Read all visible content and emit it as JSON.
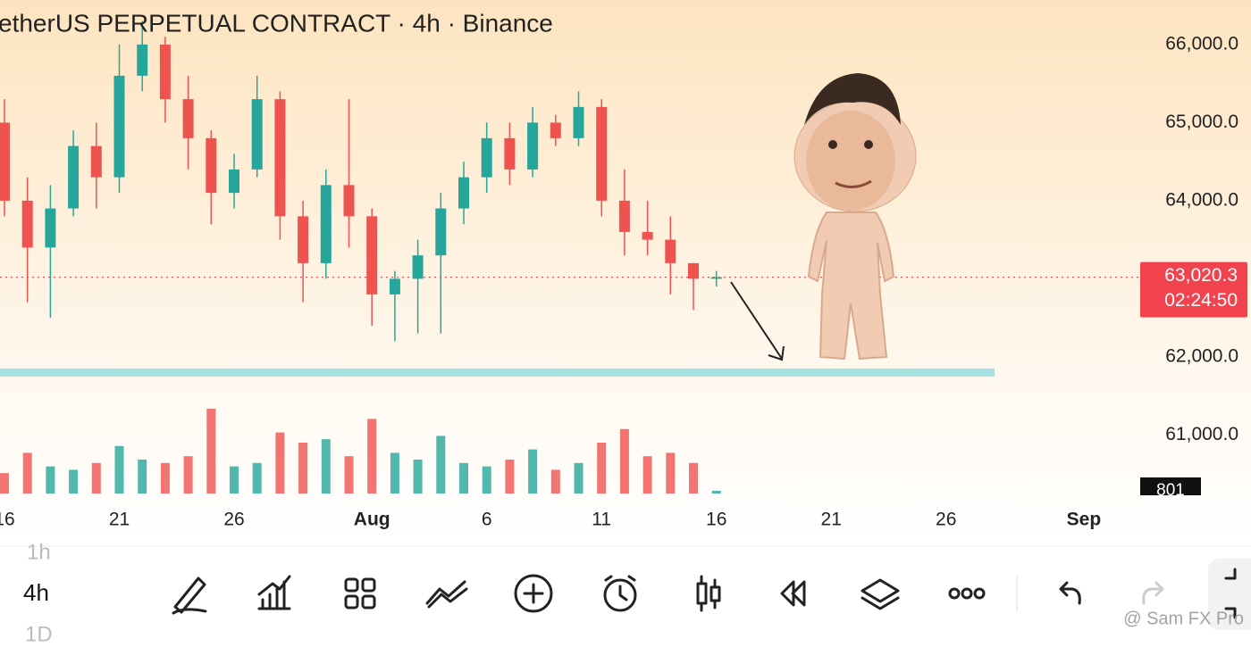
{
  "title": "etherUS PERPETUAL CONTRACT · 4h · Binance",
  "chart_data": {
    "type": "candlestick",
    "categories": [
      "16",
      null,
      null,
      null,
      null,
      "21",
      null,
      null,
      null,
      null,
      "26",
      null,
      null,
      null,
      null,
      null,
      "Aug",
      null,
      null,
      null,
      null,
      "6",
      null,
      null,
      null,
      null,
      "11",
      null,
      null,
      null,
      null,
      "16",
      null,
      null,
      null,
      null,
      "21",
      null,
      null,
      null,
      null,
      "26",
      null,
      null,
      null,
      null,
      null,
      "Sep",
      null,
      null
    ],
    "open": [
      65000,
      64000,
      63400,
      63900,
      64700,
      64300,
      65600,
      66000,
      65300,
      64800,
      64100,
      64400,
      65300,
      63800,
      63200,
      64200,
      63800,
      62800,
      63000,
      63300,
      63900,
      64300,
      64800,
      64400,
      65000,
      64800,
      65200,
      64000,
      63600,
      63500,
      63200,
      63000,
      null,
      null,
      null,
      null,
      null,
      null,
      null,
      null,
      null,
      null,
      null,
      null,
      null,
      null,
      null,
      null,
      null,
      null
    ],
    "high": [
      65300,
      64300,
      64200,
      64900,
      65000,
      66000,
      66300,
      66100,
      65600,
      64900,
      64600,
      65600,
      65400,
      64000,
      64400,
      65300,
      63900,
      63100,
      63500,
      64100,
      64500,
      65000,
      65000,
      65200,
      65100,
      65400,
      65300,
      64400,
      64000,
      63800,
      63200,
      63100,
      null,
      null,
      null,
      null,
      null,
      null,
      null,
      null,
      null,
      null,
      null,
      null,
      null,
      null,
      null,
      null,
      null,
      null
    ],
    "low": [
      63800,
      62700,
      62500,
      63800,
      63900,
      64100,
      65400,
      65000,
      64400,
      63700,
      63900,
      64300,
      63500,
      62700,
      63000,
      63400,
      62400,
      62200,
      62300,
      62300,
      63700,
      64100,
      64200,
      64300,
      64700,
      64700,
      63800,
      63300,
      63300,
      62800,
      62600,
      62900,
      null,
      null,
      null,
      null,
      null,
      null,
      null,
      null,
      null,
      null,
      null,
      null,
      null,
      null,
      null,
      null,
      null,
      null
    ],
    "close": [
      64000,
      63400,
      63900,
      64700,
      64300,
      65600,
      66000,
      65300,
      64800,
      64100,
      64400,
      65300,
      63800,
      63200,
      64200,
      63800,
      62800,
      63000,
      63300,
      63900,
      64300,
      64800,
      64400,
      65000,
      64800,
      65200,
      64000,
      63600,
      63500,
      63200,
      63000,
      63020.3,
      null,
      null,
      null,
      null,
      null,
      null,
      null,
      null,
      null,
      null,
      null,
      null,
      null,
      null,
      null,
      null,
      null,
      null
    ],
    "volume": [
      6000,
      12000,
      8000,
      7000,
      9000,
      14000,
      10000,
      9000,
      11000,
      25000,
      8000,
      9000,
      18000,
      15000,
      16000,
      11000,
      22000,
      12000,
      10000,
      17000,
      9000,
      8000,
      10000,
      13000,
      7000,
      9000,
      15000,
      19000,
      11000,
      12000,
      9000,
      801,
      null,
      null,
      null,
      null,
      null,
      null,
      null,
      null,
      null,
      null,
      null,
      null,
      null,
      null,
      null,
      null,
      null,
      null
    ],
    "up_color": "#26a69a",
    "down_color": "#ef5350",
    "ylim": [
      60250,
      66570
    ],
    "yticks": [
      {
        "value": 66000,
        "label": "66,000.0"
      },
      {
        "value": 65000,
        "label": "65,000.0"
      },
      {
        "value": 64000,
        "label": "64,000.0"
      },
      {
        "value": 62000,
        "label": "62,000.0"
      },
      {
        "value": 61000,
        "label": "61,000.0"
      }
    ],
    "last_price": {
      "value": 63020.3,
      "label": "63,020.3"
    },
    "countdown": "02:24:50",
    "support": 61800,
    "support_color": "#a8e0e0"
  },
  "toolbar": {
    "intervals": [
      "1h",
      "4h",
      "1D"
    ]
  },
  "watermark": "@ Sam FX Pro"
}
